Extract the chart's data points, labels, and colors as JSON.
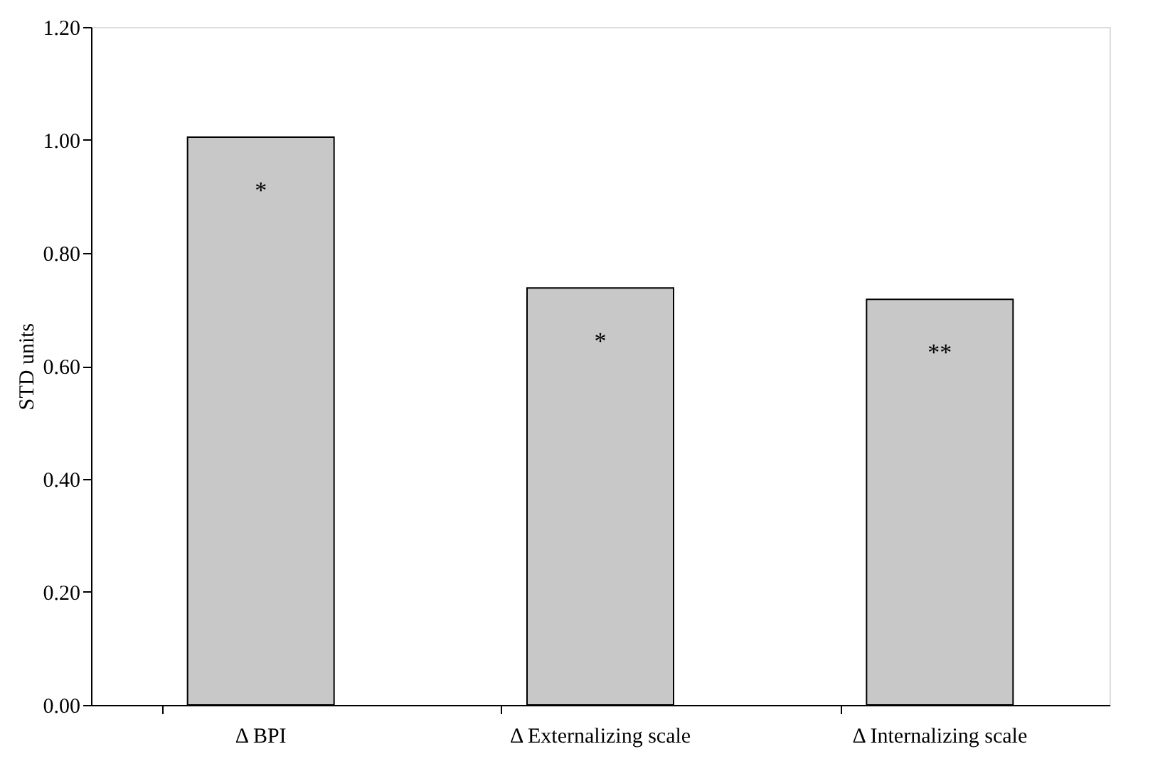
{
  "chart_data": {
    "type": "bar",
    "ylabel": "STD units",
    "categories": [
      "Δ BPI",
      "Δ Externalizing scale",
      "Δ Internalizing scale"
    ],
    "values": [
      1.005,
      0.738,
      0.718
    ],
    "color": "#c8c8c8",
    "ylim": [
      0,
      1.2
    ],
    "yticks": [
      {
        "value": 0,
        "label": "0.00"
      },
      {
        "value": 0.2,
        "label": "0.20"
      },
      {
        "value": 0.4,
        "label": "0.40"
      },
      {
        "value": 0.6,
        "label": "0.60"
      },
      {
        "value": 0.8,
        "label": "0.80"
      },
      {
        "value": 1.0,
        "label": "1.00"
      },
      {
        "value": 1.2,
        "label": "1.20"
      }
    ],
    "grid": false,
    "annotations": [
      "*",
      "*",
      "**"
    ]
  }
}
